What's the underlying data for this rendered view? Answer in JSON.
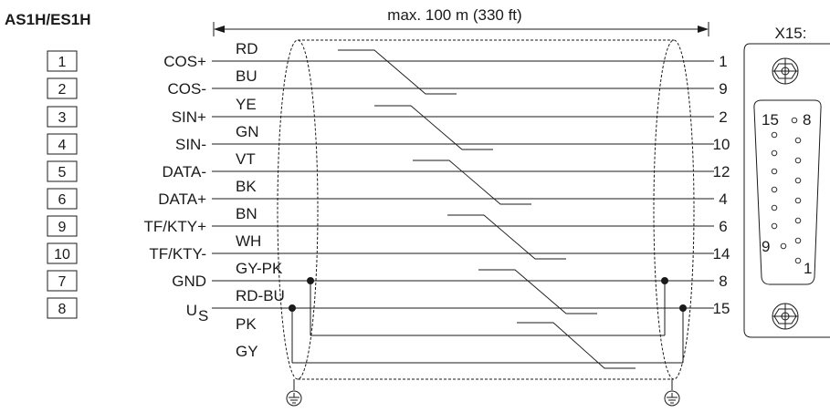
{
  "title": "AS1H/ES1H",
  "dimension_label": "max. 100 m (330 ft)",
  "connector_label": "X15:",
  "left_pins": [
    "1",
    "2",
    "3",
    "4",
    "5",
    "6",
    "9",
    "10",
    "7",
    "8"
  ],
  "signals": [
    "COS+",
    "COS-",
    "SIN+",
    "SIN-",
    "DATA-",
    "DATA+",
    "TF/KTY+",
    "TF/KTY-",
    "GND",
    "U"
  ],
  "signal_subscript": "S",
  "wire_colors": [
    "RD",
    "BU",
    "YE",
    "GN",
    "VT",
    "BK",
    "BN",
    "WH",
    "GY-PK",
    "RD-BU",
    "PK",
    "GY"
  ],
  "right_pins": [
    "1",
    "9",
    "2",
    "10",
    "12",
    "4",
    "6",
    "14",
    "8",
    "15"
  ],
  "dsub_pins": {
    "top_left": "15",
    "top_right": "8",
    "bottom_left": "9",
    "bottom_right": "1"
  }
}
